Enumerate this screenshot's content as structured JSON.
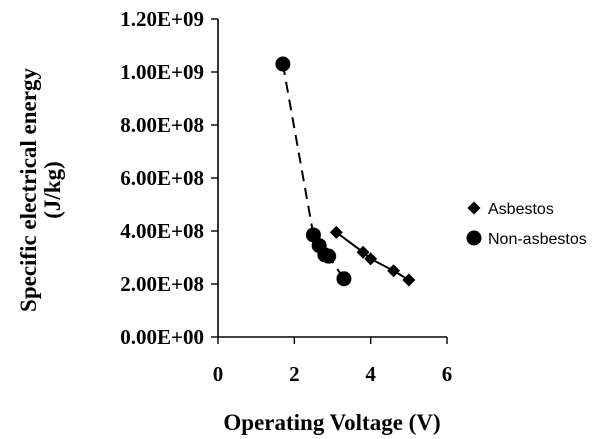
{
  "chart_data": {
    "type": "scatter",
    "title": "",
    "xlabel": "Operating Voltage (V)",
    "ylabel_line1": "Specific electrical energy",
    "ylabel_line2": "(J/kg)",
    "xlim": [
      0,
      6
    ],
    "ylim": [
      0,
      1200000000
    ],
    "x_ticks": [
      0,
      2,
      4,
      6
    ],
    "x_tick_labels": [
      "0",
      "2",
      "4",
      "6"
    ],
    "y_ticks": [
      0,
      200000000,
      400000000,
      600000000,
      800000000,
      1000000000,
      1200000000
    ],
    "y_tick_labels": [
      "0.00E+00",
      "2.00E+08",
      "4.00E+08",
      "6.00E+08",
      "8.00E+08",
      "1.00E+09",
      "1.20E+09"
    ],
    "grid": false,
    "legend_position": "right",
    "series": [
      {
        "name": "Asbestos",
        "marker": "diamond",
        "color": "#000000",
        "trendline": "solid",
        "points": [
          {
            "x": 3.1,
            "y": 395000000
          },
          {
            "x": 3.8,
            "y": 320000000
          },
          {
            "x": 4.0,
            "y": 295000000
          },
          {
            "x": 4.6,
            "y": 250000000
          },
          {
            "x": 5.0,
            "y": 215000000
          }
        ]
      },
      {
        "name": "Non-asbestos",
        "marker": "circle",
        "color": "#000000",
        "trendline": "dashed",
        "points": [
          {
            "x": 1.7,
            "y": 1030000000
          },
          {
            "x": 2.5,
            "y": 385000000
          },
          {
            "x": 2.65,
            "y": 345000000
          },
          {
            "x": 2.8,
            "y": 310000000
          },
          {
            "x": 2.9,
            "y": 305000000
          },
          {
            "x": 3.3,
            "y": 220000000
          }
        ]
      }
    ]
  }
}
